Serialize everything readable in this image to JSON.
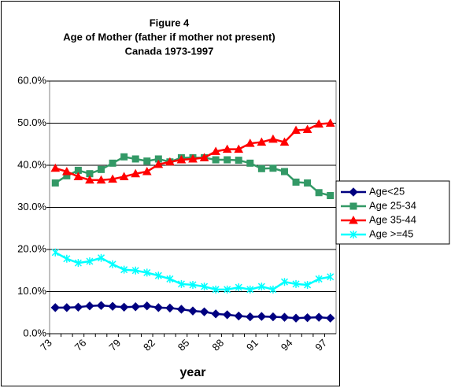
{
  "chart_data": {
    "type": "line",
    "title": [
      "Figure 4",
      "Age of Mother (father if mother not present)",
      "Canada 1973-1997"
    ],
    "x_label": "year",
    "categories": [
      "73",
      null,
      null,
      "76",
      null,
      null,
      "79",
      null,
      null,
      "82",
      null,
      null,
      "85",
      null,
      null,
      "88",
      null,
      null,
      "91",
      null,
      null,
      "94",
      null,
      null,
      "97"
    ],
    "ylim": [
      0,
      60
    ],
    "yticks": [
      {
        "value": 0,
        "label": "0.0%"
      },
      {
        "value": 10,
        "label": "10.0%"
      },
      {
        "value": 20,
        "label": "20.0%"
      },
      {
        "value": 30,
        "label": "30.0%"
      },
      {
        "value": 40,
        "label": "40.0%"
      },
      {
        "value": 50,
        "label": "50.0%"
      },
      {
        "value": 60,
        "label": "60.0%"
      }
    ],
    "grid": true,
    "legend": "right",
    "series": [
      {
        "name": "Age<25",
        "color": "#000080",
        "marker": "diamond",
        "values": [
          6.2,
          6.2,
          6.3,
          6.6,
          6.7,
          6.5,
          6.3,
          6.4,
          6.6,
          6.2,
          6.1,
          5.8,
          5.4,
          5.2,
          4.7,
          4.5,
          4.2,
          4.0,
          4.1,
          4.0,
          3.9,
          3.7,
          3.8,
          3.9,
          3.7
        ]
      },
      {
        "name": "Age 25-34",
        "color": "#339966",
        "marker": "square",
        "values": [
          35.8,
          37.5,
          38.8,
          38.0,
          39.0,
          40.5,
          42.0,
          41.5,
          41.0,
          41.5,
          40.8,
          41.8,
          41.8,
          41.8,
          41.3,
          41.3,
          41.2,
          40.5,
          39.2,
          39.3,
          38.5,
          36.0,
          35.8,
          33.5,
          32.8
        ]
      },
      {
        "name": "Age 35-44",
        "color": "#ff0000",
        "marker": "triangle",
        "values": [
          39.3,
          38.5,
          37.3,
          36.5,
          36.5,
          36.7,
          37.3,
          38.0,
          38.5,
          40.2,
          40.8,
          41.3,
          41.5,
          41.8,
          43.3,
          43.8,
          43.8,
          45.2,
          45.5,
          46.2,
          45.5,
          48.3,
          48.5,
          49.8,
          50.0
        ]
      },
      {
        "name": "Age >=45",
        "color": "#00ffff",
        "marker": "star",
        "values": [
          19.3,
          17.8,
          16.8,
          17.2,
          18.0,
          16.5,
          15.2,
          15.0,
          14.5,
          13.8,
          13.0,
          11.8,
          11.6,
          11.2,
          10.5,
          10.5,
          11.0,
          10.5,
          11.2,
          10.5,
          12.3,
          11.8,
          11.6,
          13.0,
          13.5
        ]
      }
    ]
  }
}
